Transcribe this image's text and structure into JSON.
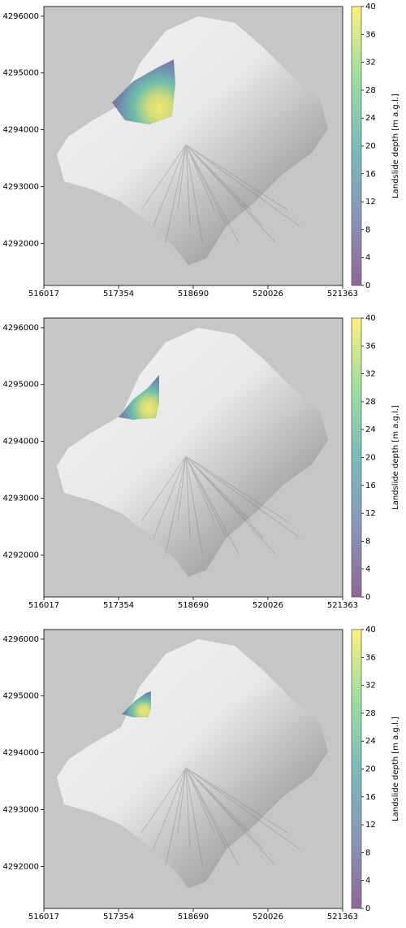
{
  "chart_data": [
    {
      "type": "map",
      "xlim": [
        516017,
        521363
      ],
      "ylim": [
        4291260,
        4296170
      ],
      "xticks": [
        516017,
        517354,
        518690,
        520026,
        521363
      ],
      "yticks": [
        4292000,
        4293000,
        4294000,
        4295000,
        4296000
      ],
      "colormap": "viridis",
      "colorbar": {
        "label": "Landslide depth [m a.g.l.]",
        "lim": [
          0,
          40
        ],
        "ticks": [
          0,
          4,
          8,
          12,
          16,
          20,
          24,
          28,
          32,
          36,
          40
        ]
      }
    },
    {
      "type": "map",
      "xlim": [
        516017,
        521363
      ],
      "ylim": [
        4291260,
        4296170
      ],
      "xticks": [
        516017,
        517354,
        518690,
        520026,
        521363
      ],
      "yticks": [
        4292000,
        4293000,
        4294000,
        4295000,
        4296000
      ],
      "colormap": "viridis",
      "colorbar": {
        "label": "Landslide depth [m a.g.l.]",
        "lim": [
          0,
          40
        ],
        "ticks": [
          0,
          4,
          8,
          12,
          16,
          20,
          24,
          28,
          32,
          36,
          40
        ]
      }
    },
    {
      "type": "map",
      "xlim": [
        516017,
        521363
      ],
      "ylim": [
        4291260,
        4296170
      ],
      "xticks": [
        516017,
        517354,
        518690,
        520026,
        521363
      ],
      "yticks": [
        4292000,
        4293000,
        4294000,
        4295000,
        4296000
      ],
      "colormap": "viridis",
      "colorbar": {
        "label": "Landslide depth [m a.g.l.]",
        "lim": [
          0,
          40
        ],
        "ticks": [
          0,
          4,
          8,
          12,
          16,
          20,
          24,
          28,
          32,
          36,
          40
        ]
      }
    }
  ]
}
